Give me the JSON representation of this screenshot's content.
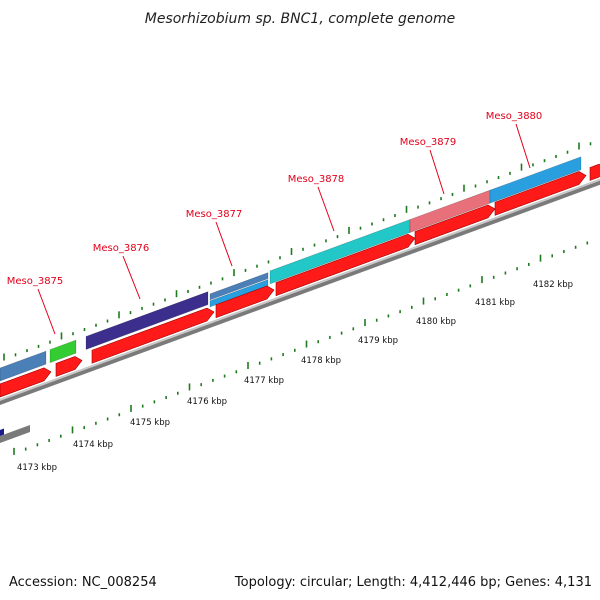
{
  "title": "Mesorhizobium sp. BNC1, complete genome",
  "footer": {
    "accession": "Accession: NC_008254",
    "summary": "Topology: circular; Length: 4,412,446 bp; Genes: 4,131"
  },
  "scale_labels": [
    "4173 kbp",
    "4174 kbp",
    "4175 kbp",
    "4176 kbp",
    "4177 kbp",
    "4178 kbp",
    "4179 kbp",
    "4180 kbp",
    "4181 kbp",
    "4182 kbp"
  ],
  "gene_labels": [
    "Meso_3875",
    "Meso_3876",
    "Meso_3877",
    "Meso_3878",
    "Meso_3879",
    "Meso_3880"
  ],
  "colors": {
    "cds_red": "#ff1a1a",
    "backbone": "#7a7a7a",
    "tick": "#1e7a1e",
    "label": "#e2001a",
    "steel": "#4a7fb8",
    "green": "#33cc33",
    "purple": "#3c2e8c",
    "sky": "#2a9fe0",
    "teal": "#22c8c8",
    "pink": "#e8707a",
    "navy": "#1a1a8c"
  }
}
